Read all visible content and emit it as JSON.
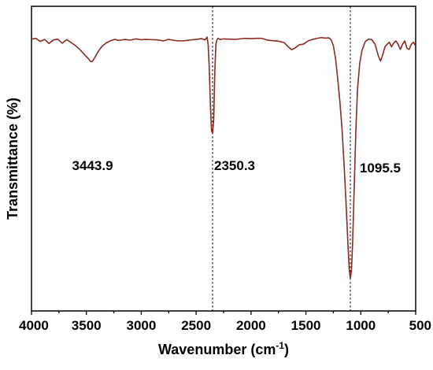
{
  "chart_data": {
    "type": "line",
    "title": "",
    "xlabel": "Wavenumber (cm",
    "xlabel_superscript": "-1",
    "xlabel_suffix": ")",
    "ylabel": "Transmittance (%)",
    "xlim": [
      4000,
      500
    ],
    "x_reversed": true,
    "y_ticks_shown": false,
    "ylim": [
      0,
      100
    ],
    "xticks": [
      4000,
      3500,
      3000,
      2500,
      2000,
      1500,
      1000,
      500
    ],
    "grid": false,
    "legend": "none",
    "series": [
      {
        "color": "#8b2a1f",
        "x": [
          4000,
          3960,
          3920,
          3880,
          3840,
          3800,
          3760,
          3720,
          3680,
          3640,
          3600,
          3560,
          3520,
          3490,
          3460,
          3443.9,
          3420,
          3390,
          3360,
          3320,
          3280,
          3240,
          3200,
          3150,
          3100,
          3050,
          3000,
          2950,
          2900,
          2850,
          2800,
          2750,
          2700,
          2650,
          2600,
          2550,
          2500,
          2450,
          2420,
          2400,
          2390,
          2380,
          2370,
          2360,
          2350.3,
          2340,
          2330,
          2320,
          2310,
          2300,
          2280,
          2250,
          2200,
          2150,
          2100,
          2050,
          2000,
          1950,
          1900,
          1850,
          1800,
          1750,
          1700,
          1660,
          1630,
          1600,
          1560,
          1520,
          1480,
          1440,
          1400,
          1360,
          1320,
          1290,
          1270,
          1250,
          1230,
          1210,
          1190,
          1170,
          1150,
          1130,
          1115,
          1105,
          1095.5,
          1085,
          1075,
          1060,
          1045,
          1030,
          1010,
          990,
          960,
          930,
          900,
          870,
          840,
          820,
          800,
          780,
          760,
          740,
          720,
          700,
          680,
          660,
          640,
          620,
          600,
          580,
          560,
          540,
          520,
          500
        ],
        "y": [
          95.5,
          95.8,
          94.6,
          95.4,
          93.8,
          95.2,
          95.5,
          93.9,
          95.3,
          94.2,
          93.0,
          91.5,
          89.6,
          88.3,
          86.8,
          86.9,
          88.6,
          90.8,
          92.6,
          94.0,
          94.9,
          95.4,
          95.0,
          95.4,
          95.1,
          95.6,
          95.3,
          95.4,
          95.3,
          95.2,
          94.8,
          95.4,
          95.0,
          94.8,
          94.9,
          95.2,
          95.4,
          95.7,
          95.2,
          96.3,
          93.0,
          84.0,
          70.0,
          60.0,
          59.0,
          64.0,
          83.0,
          93.5,
          95.3,
          95.8,
          95.3,
          95.6,
          95.5,
          95.4,
          95.6,
          95.8,
          95.7,
          95.8,
          95.8,
          95.1,
          94.9,
          94.7,
          94.2,
          92.5,
          91.4,
          92.0,
          93.3,
          93.6,
          94.8,
          95.4,
          95.8,
          96.1,
          95.9,
          96.0,
          95.2,
          93.0,
          88.0,
          80.0,
          71.0,
          60.0,
          45.0,
          28.0,
          14.0,
          6.0,
          2.5,
          5.5,
          16.0,
          38.0,
          60.0,
          76.0,
          86.0,
          91.0,
          94.5,
          95.5,
          95.3,
          93.5,
          89.0,
          87.0,
          89.5,
          92.5,
          93.5,
          94.3,
          92.5,
          94.0,
          94.8,
          93.5,
          91.5,
          93.5,
          94.8,
          92.0,
          91.5,
          93.5,
          94.3,
          92.8
        ]
      }
    ],
    "reference_lines": [
      {
        "x": 2350.3
      },
      {
        "x": 1095.5
      }
    ],
    "annotations": [
      {
        "text": "3443.9",
        "x": 3443.9
      },
      {
        "text": "2350.3",
        "x": 2350.3
      },
      {
        "text": "1095.5",
        "x": 1095.5
      }
    ]
  }
}
